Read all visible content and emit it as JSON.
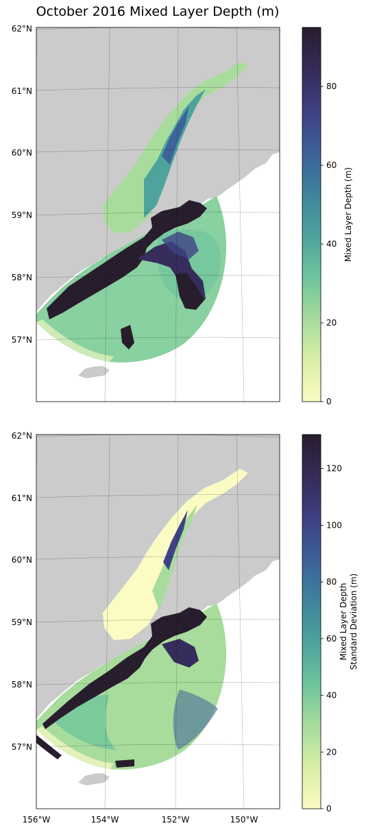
{
  "title": "October 2016 Mixed Layer Depth (m)",
  "latitude_labels": [
    "62°N",
    "61°N",
    "60°N",
    "59°N",
    "58°N",
    "57°N"
  ],
  "longitude_labels": [
    "156°W",
    "154°W",
    "152°W",
    "150°W"
  ],
  "colors": {
    "land": "#cbcbcb",
    "colormap": [
      "#fbfbc4",
      "#d8efa8",
      "#a8dc9c",
      "#6fc59c",
      "#4ea49d",
      "#3f859c",
      "#3d6399",
      "#3e4285",
      "#362d5c",
      "#281d2d"
    ]
  },
  "panels": [
    {
      "name": "mixed-layer-depth",
      "colorbar": {
        "label_lines": [
          "Mixed Layer Depth (m)"
        ],
        "ticks": [
          "0",
          "20",
          "40",
          "60",
          "80"
        ],
        "tick_values": [
          0,
          20,
          40,
          60,
          80
        ],
        "range": [
          0,
          95
        ]
      }
    },
    {
      "name": "mixed-layer-depth-std",
      "colorbar": {
        "label_lines": [
          "Mixed Layer Depth",
          "Standard Deviation (m)"
        ],
        "ticks": [
          "0",
          "20",
          "40",
          "60",
          "80",
          "100",
          "120"
        ],
        "tick_values": [
          0,
          20,
          40,
          60,
          80,
          100,
          120
        ],
        "range": [
          0,
          132
        ]
      }
    }
  ]
}
